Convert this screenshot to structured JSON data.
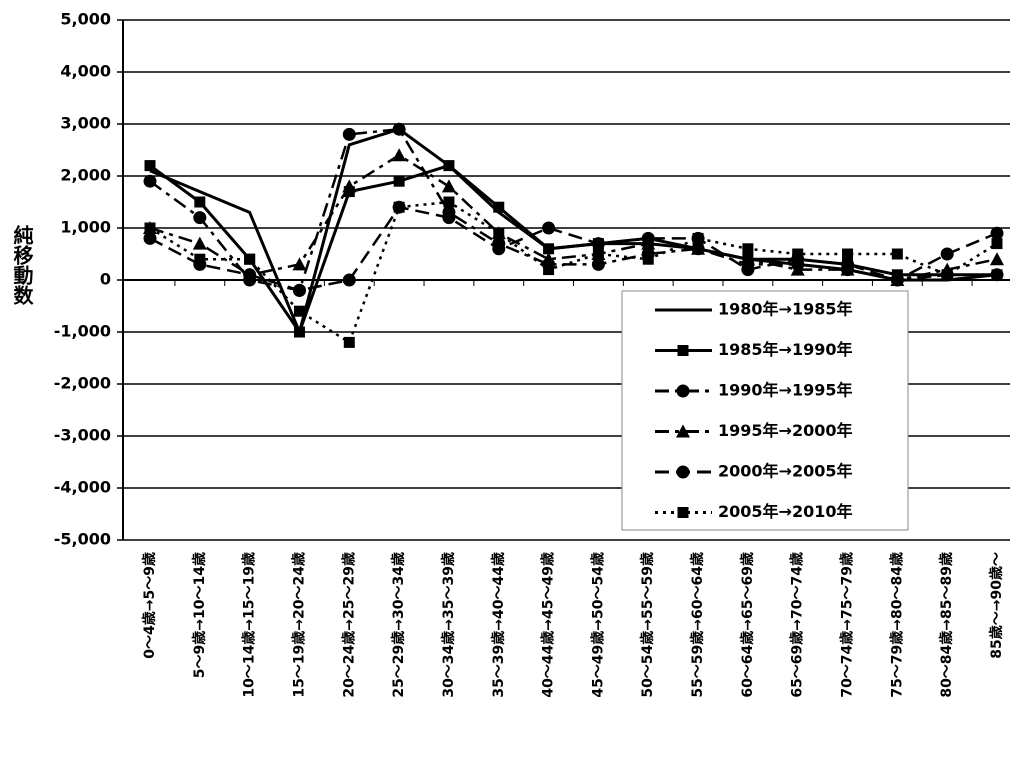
{
  "chart_data": {
    "type": "line",
    "ylabel": "純移動数",
    "categories": [
      "0～4歳→5～9歳",
      "5～9歳→10～14歳",
      "10～14歳→15～19歳",
      "15～19歳→20～24歳",
      "20～24歳→25～29歳",
      "25～29歳→30～34歳",
      "30～34歳→35～39歳",
      "35～39歳→40～44歳",
      "40～44歳→45～49歳",
      "45～49歳→50～54歳",
      "50～54歳→55～59歳",
      "55～59歳→60～64歳",
      "60～64歳→65～69歳",
      "65～69歳→70～74歳",
      "70～74歳→75～79歳",
      "75～79歳→80～84歳",
      "80～84歳→85～89歳",
      "85歳～→90歳～"
    ],
    "series": [
      {
        "name": "1980年→1985年",
        "color": "#000000",
        "dash": "solid",
        "marker": "none",
        "values": [
          2100,
          1700,
          1300,
          -1000,
          2600,
          2900,
          2200,
          1300,
          600,
          700,
          800,
          600,
          400,
          300,
          200,
          0,
          0,
          100
        ]
      },
      {
        "name": "1985年→1990年",
        "color": "#000000",
        "dash": "solid",
        "marker": "square",
        "values": [
          2200,
          1500,
          400,
          -1000,
          1700,
          1900,
          2200,
          1400,
          600,
          700,
          700,
          600,
          400,
          400,
          300,
          100,
          100,
          100
        ]
      },
      {
        "name": "1990年→1995年",
        "color": "#000000",
        "dash": "dashdot",
        "marker": "circle",
        "values": [
          1900,
          1200,
          0,
          -200,
          2800,
          2900,
          1300,
          700,
          300,
          300,
          500,
          600,
          300,
          300,
          200,
          0,
          100,
          100
        ]
      },
      {
        "name": "1995年→2000年",
        "color": "#000000",
        "dash": "dashdot",
        "marker": "triangle",
        "values": [
          1000,
          700,
          100,
          300,
          1800,
          2400,
          1800,
          900,
          400,
          500,
          700,
          600,
          400,
          200,
          200,
          0,
          200,
          400
        ]
      },
      {
        "name": "2000年→2005年",
        "color": "#000000",
        "dash": "dashed",
        "marker": "circle",
        "values": [
          800,
          300,
          100,
          -200,
          0,
          1400,
          1200,
          600,
          1000,
          700,
          800,
          800,
          200,
          400,
          300,
          0,
          500,
          900
        ]
      },
      {
        "name": "2005年→2010年",
        "color": "#000000",
        "dash": "dotted",
        "marker": "square",
        "values": [
          1000,
          400,
          400,
          -600,
          -1200,
          1400,
          1500,
          900,
          200,
          500,
          400,
          800,
          600,
          500,
          500,
          500,
          100,
          700
        ]
      }
    ],
    "ylim": [
      -5000,
      5000
    ],
    "yticks": [
      {
        "value": -5000,
        "label": "-5,000"
      },
      {
        "value": -4000,
        "label": "-4,000"
      },
      {
        "value": -3000,
        "label": "-3,000"
      },
      {
        "value": -2000,
        "label": "-2,000"
      },
      {
        "value": -1000,
        "label": "-1,000"
      },
      0,
      {
        "value": 1000,
        "label": "1,000"
      },
      {
        "value": 2000,
        "label": "2,000"
      },
      {
        "value": 3000,
        "label": "3,000"
      },
      {
        "value": 4000,
        "label": "4,000"
      },
      {
        "value": 5000,
        "label": "5,000"
      }
    ],
    "grid": true,
    "legend": "right"
  }
}
